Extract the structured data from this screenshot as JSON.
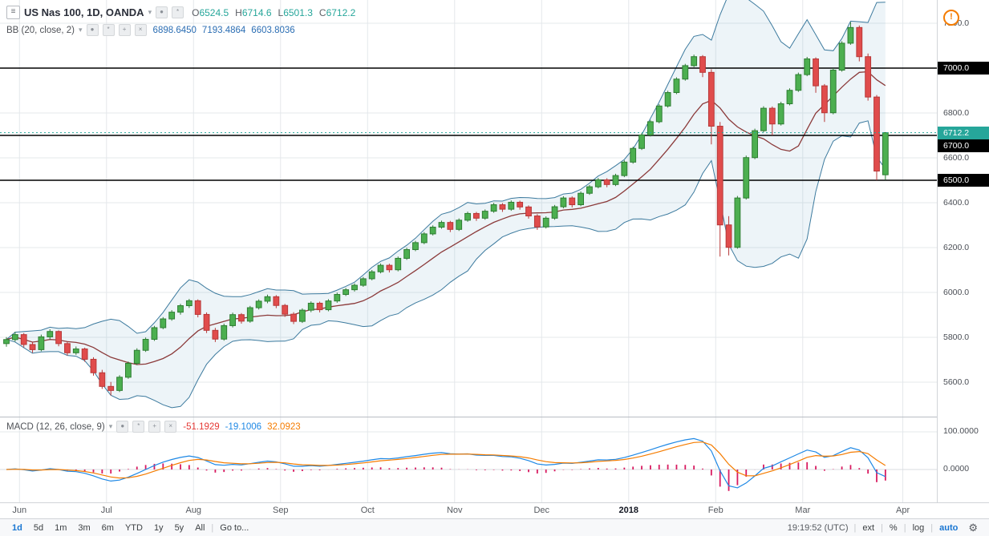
{
  "header": {
    "symbol_title": "US Nas 100, 1D, OANDA",
    "ohlc": [
      {
        "label": "O",
        "value": "6524.5"
      },
      {
        "label": "H",
        "value": "6714.6"
      },
      {
        "label": "L",
        "value": "6501.3"
      },
      {
        "label": "C",
        "value": "6712.2"
      }
    ],
    "bb": {
      "title": "BB (20, close, 2)",
      "values": [
        "6898.6450",
        "7193.4864",
        "6603.8036"
      ]
    },
    "macd": {
      "title": "MACD (12, 26, close, 9)",
      "values": [
        "-51.1929",
        "-19.1006",
        "32.0923"
      ]
    }
  },
  "alert_icon": "!",
  "chart_data": {
    "type": "candlestick",
    "title": "US Nas 100, 1D, OANDA",
    "x_range": [
      "Jun 2017",
      "Apr 2018"
    ],
    "visible_price_range": [
      5600,
      7200
    ],
    "current_price": 6712.2,
    "price_lines": [
      7000,
      6700,
      6500
    ],
    "indicators": [
      {
        "name": "BB",
        "params": "20, close, 2",
        "values": [
          6898.645,
          7193.4864,
          6603.8036
        ]
      },
      {
        "name": "MACD",
        "params": "12, 26, close, 9",
        "values": [
          -51.1929,
          -19.1006,
          32.0923
        ]
      }
    ],
    "y_axis": {
      "ticks": [
        {
          "label": "7200.0",
          "price": 7200
        },
        {
          "label": "6800.0",
          "price": 6800
        },
        {
          "label": "6600.0",
          "price": 6600
        },
        {
          "label": "6400.0",
          "price": 6400
        },
        {
          "label": "6200.0",
          "price": 6200
        },
        {
          "label": "6000.0",
          "price": 6000
        },
        {
          "label": "5800.0",
          "price": 5800
        },
        {
          "label": "5600.0",
          "price": 5600
        }
      ],
      "badges": [
        {
          "label": "7000.0",
          "price": 7000,
          "bg": "#000000",
          "fg": "#ffffff"
        },
        {
          "label": "6712.2",
          "price": 6712.2,
          "bg": "#26a69a",
          "fg": "#ffffff"
        },
        {
          "label": "6700.0",
          "price": 6700,
          "bg": "#000000",
          "fg": "#ffffff",
          "dy": 13
        },
        {
          "label": "6500.0",
          "price": 6500,
          "bg": "#000000",
          "fg": "#ffffff"
        }
      ]
    },
    "macd_axis": [
      {
        "label": "100.0000",
        "value": 100
      },
      {
        "label": "0.0000",
        "value": 0
      }
    ],
    "months": [
      {
        "label": "Jun",
        "i": 1.5
      },
      {
        "label": "Jul",
        "i": 11.5
      },
      {
        "label": "Aug",
        "i": 21.5
      },
      {
        "label": "Sep",
        "i": 31.5
      },
      {
        "label": "Oct",
        "i": 41.5
      },
      {
        "label": "Nov",
        "i": 51.5
      },
      {
        "label": "Dec",
        "i": 61.5
      },
      {
        "label": "2018",
        "i": 71.5,
        "strong": true
      },
      {
        "label": "Feb",
        "i": 81.5
      },
      {
        "label": "Mar",
        "i": 91.5
      },
      {
        "label": "Apr",
        "i": 103
      }
    ],
    "candles": [
      [
        5772,
        5801,
        5758,
        5790
      ],
      [
        5790,
        5824,
        5781,
        5812
      ],
      [
        5812,
        5819,
        5755,
        5768
      ],
      [
        5768,
        5779,
        5731,
        5745
      ],
      [
        5745,
        5812,
        5738,
        5802
      ],
      [
        5802,
        5836,
        5790,
        5826
      ],
      [
        5826,
        5831,
        5760,
        5772
      ],
      [
        5772,
        5780,
        5719,
        5731
      ],
      [
        5731,
        5759,
        5722,
        5748
      ],
      [
        5748,
        5754,
        5691,
        5702
      ],
      [
        5702,
        5711,
        5629,
        5642
      ],
      [
        5642,
        5655,
        5570,
        5581
      ],
      [
        5581,
        5601,
        5541,
        5563
      ],
      [
        5563,
        5631,
        5556,
        5622
      ],
      [
        5622,
        5692,
        5615,
        5684
      ],
      [
        5684,
        5751,
        5676,
        5742
      ],
      [
        5742,
        5799,
        5735,
        5791
      ],
      [
        5791,
        5851,
        5784,
        5843
      ],
      [
        5843,
        5890,
        5836,
        5882
      ],
      [
        5882,
        5921,
        5874,
        5912
      ],
      [
        5912,
        5949,
        5901,
        5941
      ],
      [
        5941,
        5971,
        5931,
        5963
      ],
      [
        5963,
        5969,
        5889,
        5902
      ],
      [
        5902,
        5911,
        5819,
        5831
      ],
      [
        5831,
        5842,
        5779,
        5792
      ],
      [
        5792,
        5861,
        5785,
        5852
      ],
      [
        5852,
        5910,
        5844,
        5901
      ],
      [
        5901,
        5908,
        5861,
        5872
      ],
      [
        5872,
        5940,
        5865,
        5932
      ],
      [
        5932,
        5969,
        5924,
        5961
      ],
      [
        5961,
        5990,
        5952,
        5981
      ],
      [
        5981,
        5988,
        5930,
        5942
      ],
      [
        5942,
        5949,
        5891,
        5903
      ],
      [
        5903,
        5912,
        5859,
        5871
      ],
      [
        5871,
        5929,
        5864,
        5921
      ],
      [
        5921,
        5960,
        5912,
        5952
      ],
      [
        5952,
        5959,
        5911,
        5923
      ],
      [
        5923,
        5970,
        5916,
        5962
      ],
      [
        5962,
        5999,
        5954,
        5991
      ],
      [
        5991,
        6020,
        5984,
        6012
      ],
      [
        6012,
        6040,
        6004,
        6032
      ],
      [
        6032,
        6069,
        6025,
        6061
      ],
      [
        6061,
        6100,
        6054,
        6092
      ],
      [
        6092,
        6129,
        6085,
        6121
      ],
      [
        6121,
        6128,
        6089,
        6101
      ],
      [
        6101,
        6160,
        6094,
        6152
      ],
      [
        6152,
        6199,
        6145,
        6191
      ],
      [
        6191,
        6230,
        6184,
        6222
      ],
      [
        6222,
        6269,
        6215,
        6261
      ],
      [
        6261,
        6299,
        6254,
        6291
      ],
      [
        6291,
        6320,
        6284,
        6312
      ],
      [
        6312,
        6319,
        6269,
        6281
      ],
      [
        6281,
        6330,
        6274,
        6322
      ],
      [
        6322,
        6360,
        6315,
        6352
      ],
      [
        6352,
        6359,
        6319,
        6331
      ],
      [
        6331,
        6370,
        6324,
        6362
      ],
      [
        6362,
        6399,
        6355,
        6391
      ],
      [
        6391,
        6398,
        6359,
        6371
      ],
      [
        6371,
        6410,
        6364,
        6402
      ],
      [
        6402,
        6409,
        6369,
        6381
      ],
      [
        6381,
        6388,
        6329,
        6341
      ],
      [
        6341,
        6349,
        6279,
        6292
      ],
      [
        6292,
        6339,
        6285,
        6331
      ],
      [
        6331,
        6390,
        6324,
        6382
      ],
      [
        6382,
        6429,
        6375,
        6421
      ],
      [
        6421,
        6428,
        6379,
        6391
      ],
      [
        6391,
        6450,
        6384,
        6442
      ],
      [
        6442,
        6479,
        6435,
        6471
      ],
      [
        6471,
        6510,
        6464,
        6502
      ],
      [
        6502,
        6509,
        6469,
        6481
      ],
      [
        6481,
        6529,
        6474,
        6521
      ],
      [
        6521,
        6589,
        6514,
        6581
      ],
      [
        6581,
        6650,
        6574,
        6642
      ],
      [
        6642,
        6710,
        6635,
        6702
      ],
      [
        6702,
        6769,
        6695,
        6761
      ],
      [
        6761,
        6839,
        6754,
        6831
      ],
      [
        6831,
        6899,
        6824,
        6891
      ],
      [
        6891,
        6959,
        6884,
        6951
      ],
      [
        6951,
        7019,
        6944,
        7011
      ],
      [
        7011,
        7060,
        7004,
        7051
      ],
      [
        7051,
        7058,
        6960,
        6981
      ],
      [
        6981,
        6995,
        6660,
        6741
      ],
      [
        6741,
        6760,
        6160,
        6301
      ],
      [
        6301,
        6340,
        6165,
        6201
      ],
      [
        6201,
        6430,
        6195,
        6421
      ],
      [
        6421,
        6610,
        6414,
        6601
      ],
      [
        6601,
        6730,
        6594,
        6721
      ],
      [
        6721,
        6830,
        6714,
        6821
      ],
      [
        6821,
        6829,
        6700,
        6751
      ],
      [
        6751,
        6850,
        6744,
        6841
      ],
      [
        6841,
        6910,
        6834,
        6901
      ],
      [
        6901,
        6980,
        6894,
        6971
      ],
      [
        6971,
        7050,
        6964,
        7041
      ],
      [
        7041,
        7048,
        6890,
        6921
      ],
      [
        6921,
        6929,
        6760,
        6801
      ],
      [
        6801,
        7000,
        6794,
        6991
      ],
      [
        6991,
        7120,
        6984,
        7111
      ],
      [
        7111,
        7205,
        7104,
        7181
      ],
      [
        7181,
        7190,
        7030,
        7051
      ],
      [
        7051,
        7065,
        6855,
        6871
      ],
      [
        6871,
        6880,
        6500,
        6541
      ],
      [
        6524.5,
        6714.6,
        6501.3,
        6712.2
      ]
    ],
    "colors": {
      "up": "#4caf50",
      "up_border": "#2e7d32",
      "down": "#e04c4c",
      "down_border": "#b73838",
      "bb_band": "#3c7a9e",
      "bb_fill": "#7fb0cd",
      "bb_basis": "#8b3a3a",
      "macd_line": "#1e88e5",
      "signal_line": "#f57c00",
      "histogram": "#d81b60",
      "grid": "#e4e8eb",
      "price_line": "#000000",
      "current": "#26a69a",
      "accent_blue": "#1976d2",
      "alert": "#f57c00"
    }
  },
  "footer": {
    "ranges": [
      {
        "label": "1d",
        "active": true
      },
      {
        "label": "5d"
      },
      {
        "label": "1m"
      },
      {
        "label": "3m"
      },
      {
        "label": "6m"
      },
      {
        "label": "YTD"
      },
      {
        "label": "1y"
      },
      {
        "label": "5y"
      },
      {
        "label": "All"
      }
    ],
    "goto_label": "Go to...",
    "clock": "19:19:52 (UTC)",
    "right_items": [
      {
        "label": "ext"
      },
      {
        "label": "%"
      },
      {
        "label": "log"
      },
      {
        "label": "auto",
        "active": true
      }
    ],
    "gear_icon": "⚙"
  }
}
